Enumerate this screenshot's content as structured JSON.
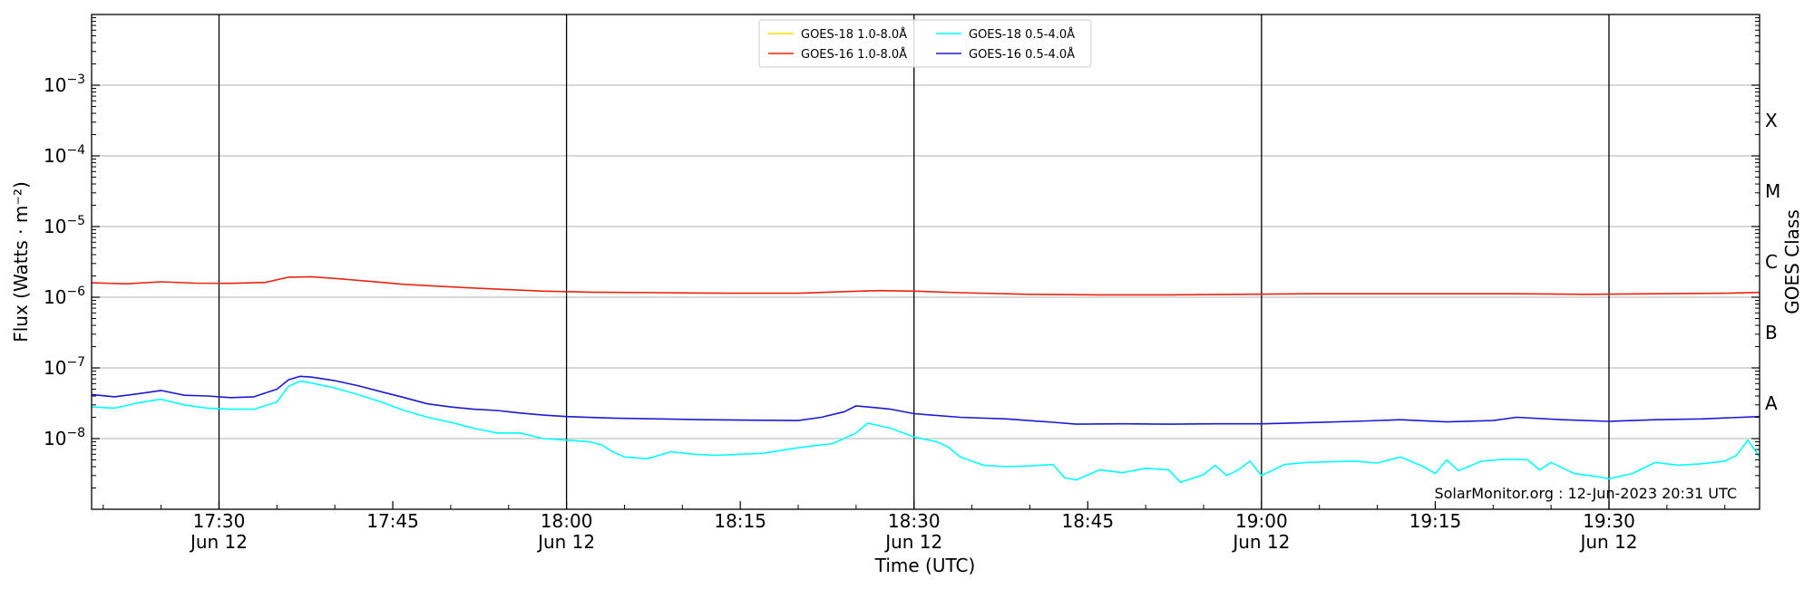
{
  "chart_data": {
    "type": "line",
    "title": "",
    "xlabel": "Time (UTC)",
    "ylabel": "Flux (Watts · m⁻²)",
    "right_label": "GOES Class",
    "yscale": "log",
    "xlim": [
      "17:19",
      "19:43"
    ],
    "ylim": [
      1e-09,
      0.01
    ],
    "grid": "horizontal at decades; vertical black lines at half-hours",
    "legend_position": "top-center",
    "x_ticks": [
      {
        "time": "17:30",
        "label": "17:30",
        "sub": "Jun 12"
      },
      {
        "time": "17:45",
        "label": "17:45",
        "sub": ""
      },
      {
        "time": "18:00",
        "label": "18:00",
        "sub": "Jun 12"
      },
      {
        "time": "18:15",
        "label": "18:15",
        "sub": ""
      },
      {
        "time": "18:30",
        "label": "18:30",
        "sub": "Jun 12"
      },
      {
        "time": "18:45",
        "label": "18:45",
        "sub": ""
      },
      {
        "time": "19:00",
        "label": "19:00",
        "sub": "Jun 12"
      },
      {
        "time": "19:15",
        "label": "19:15",
        "sub": ""
      },
      {
        "time": "19:30",
        "label": "19:30",
        "sub": "Jun 12"
      }
    ],
    "y_ticks": [
      {
        "value": 0.001,
        "base": "10",
        "exp": "−3"
      },
      {
        "value": 0.0001,
        "base": "10",
        "exp": "−4"
      },
      {
        "value": 1e-05,
        "base": "10",
        "exp": "−5"
      },
      {
        "value": 1e-06,
        "base": "10",
        "exp": "−6"
      },
      {
        "value": 1e-07,
        "base": "10",
        "exp": "−7"
      },
      {
        "value": 1e-08,
        "base": "10",
        "exp": "−8"
      }
    ],
    "class_labels": [
      {
        "label": "X",
        "value": 0.000316
      },
      {
        "label": "M",
        "value": 3.16e-05
      },
      {
        "label": "C",
        "value": 3.16e-06
      },
      {
        "label": "B",
        "value": 3.16e-07
      },
      {
        "label": "A",
        "value": 3.16e-08
      }
    ],
    "vlines": [
      "17:30",
      "18:00",
      "18:30",
      "19:00",
      "19:30"
    ],
    "series": [
      {
        "name": "GOES-18 1.0-8.0Å",
        "color": "#ffd700",
        "x": [],
        "values": []
      },
      {
        "name": "GOES-16 1.0-8.0Å",
        "color": "#e8230f",
        "x": [
          "17:19",
          "17:22",
          "17:25",
          "17:28",
          "17:31",
          "17:34",
          "17:36",
          "17:38",
          "17:40",
          "17:43",
          "17:46",
          "17:50",
          "17:54",
          "17:58",
          "18:02",
          "18:08",
          "18:14",
          "18:20",
          "18:24",
          "18:27",
          "18:30",
          "18:34",
          "18:40",
          "18:46",
          "18:52",
          "18:58",
          "19:04",
          "19:10",
          "19:16",
          "19:22",
          "19:28",
          "19:34",
          "19:40",
          "19:43"
        ],
        "values": [
          1.6e-06,
          1.55e-06,
          1.65e-06,
          1.58e-06,
          1.57e-06,
          1.62e-06,
          1.92e-06,
          1.95e-06,
          1.84e-06,
          1.68e-06,
          1.52e-06,
          1.4e-06,
          1.3e-06,
          1.22e-06,
          1.18e-06,
          1.16e-06,
          1.14e-06,
          1.14e-06,
          1.2e-06,
          1.24e-06,
          1.22e-06,
          1.16e-06,
          1.1e-06,
          1.08e-06,
          1.08e-06,
          1.1e-06,
          1.12e-06,
          1.12e-06,
          1.12e-06,
          1.12e-06,
          1.1e-06,
          1.12e-06,
          1.14e-06,
          1.17e-06
        ]
      },
      {
        "name": "GOES-18 0.5-4.0Å",
        "color": "#00ffff",
        "x": [
          "17:19",
          "17:21",
          "17:23",
          "17:25",
          "17:27",
          "17:29",
          "17:31",
          "17:33",
          "17:35",
          "17:36",
          "17:37",
          "17:38",
          "17:40",
          "17:42",
          "17:44",
          "17:46",
          "17:48",
          "17:50",
          "17:52",
          "17:54",
          "17:56",
          "17:58",
          "18:00",
          "18:02",
          "18:03",
          "18:04",
          "18:05",
          "18:07",
          "18:09",
          "18:11",
          "18:13",
          "18:15",
          "18:17",
          "18:19",
          "18:21",
          "18:23",
          "18:25",
          "18:26",
          "18:28",
          "18:30",
          "18:32",
          "18:33",
          "18:34",
          "18:36",
          "18:38",
          "18:40",
          "18:42",
          "18:43",
          "18:44",
          "18:46",
          "18:48",
          "18:50",
          "18:52",
          "18:53",
          "18:55",
          "18:56",
          "18:57",
          "18:58",
          "18:59",
          "19:00",
          "19:02",
          "19:04",
          "19:06",
          "19:08",
          "19:10",
          "19:12",
          "19:14",
          "19:15",
          "19:16",
          "19:17",
          "19:19",
          "19:21",
          "19:23",
          "19:24",
          "19:25",
          "19:27",
          "19:29",
          "19:30",
          "19:32",
          "19:34",
          "19:36",
          "19:38",
          "19:40",
          "19:41",
          "19:42",
          "19:43"
        ],
        "values": [
          2.8e-08,
          2.7e-08,
          3.2e-08,
          3.6e-08,
          3e-08,
          2.7e-08,
          2.6e-08,
          2.6e-08,
          3.3e-08,
          5.5e-08,
          6.5e-08,
          6.1e-08,
          5.2e-08,
          4.2e-08,
          3.3e-08,
          2.5e-08,
          2e-08,
          1.7e-08,
          1.4e-08,
          1.2e-08,
          1.2e-08,
          1e-08,
          9.5e-09,
          9e-09,
          8.2e-09,
          6.5e-09,
          5.5e-09,
          5.2e-09,
          6.5e-09,
          6e-09,
          5.8e-09,
          6e-09,
          6.2e-09,
          7e-09,
          7.8e-09,
          8.5e-09,
          1.2e-08,
          1.65e-08,
          1.4e-08,
          1.05e-08,
          9e-09,
          7.5e-09,
          5.5e-09,
          4.2e-09,
          4e-09,
          4.1e-09,
          4.3e-09,
          2.8e-09,
          2.6e-09,
          3.6e-09,
          3.3e-09,
          3.8e-09,
          3.6e-09,
          2.4e-09,
          3.1e-09,
          4.2e-09,
          3e-09,
          3.6e-09,
          4.8e-09,
          3e-09,
          4.3e-09,
          4.6e-09,
          4.7e-09,
          4.8e-09,
          4.5e-09,
          5.5e-09,
          4e-09,
          3.2e-09,
          5e-09,
          3.5e-09,
          4.8e-09,
          5.1e-09,
          5e-09,
          3.6e-09,
          4.6e-09,
          3.2e-09,
          2.9e-09,
          2.7e-09,
          3.2e-09,
          4.6e-09,
          4.2e-09,
          4.4e-09,
          4.8e-09,
          5.8e-09,
          9.5e-09,
          5.5e-09
        ]
      },
      {
        "name": "GOES-16 0.5-4.0Å",
        "color": "#1a1ad4",
        "x": [
          "17:19",
          "17:21",
          "17:23",
          "17:25",
          "17:27",
          "17:29",
          "17:31",
          "17:33",
          "17:35",
          "17:36",
          "17:37",
          "17:38",
          "17:40",
          "17:42",
          "17:44",
          "17:46",
          "17:48",
          "17:50",
          "17:52",
          "17:54",
          "17:56",
          "17:58",
          "18:00",
          "18:04",
          "18:08",
          "18:12",
          "18:16",
          "18:20",
          "18:22",
          "18:24",
          "18:25",
          "18:26",
          "18:28",
          "18:30",
          "18:34",
          "18:38",
          "18:42",
          "18:44",
          "18:48",
          "18:52",
          "18:56",
          "19:00",
          "19:04",
          "19:08",
          "19:12",
          "19:16",
          "19:20",
          "19:22",
          "19:26",
          "19:30",
          "19:34",
          "19:38",
          "19:43"
        ],
        "values": [
          4.2e-08,
          3.9e-08,
          4.3e-08,
          4.8e-08,
          4.1e-08,
          4e-08,
          3.8e-08,
          3.9e-08,
          5e-08,
          6.8e-08,
          7.6e-08,
          7.4e-08,
          6.6e-08,
          5.6e-08,
          4.6e-08,
          3.8e-08,
          3.1e-08,
          2.8e-08,
          2.6e-08,
          2.5e-08,
          2.3e-08,
          2.15e-08,
          2.05e-08,
          1.95e-08,
          1.9e-08,
          1.85e-08,
          1.82e-08,
          1.8e-08,
          2e-08,
          2.4e-08,
          2.9e-08,
          2.8e-08,
          2.6e-08,
          2.25e-08,
          2e-08,
          1.9e-08,
          1.7e-08,
          1.6e-08,
          1.62e-08,
          1.6e-08,
          1.62e-08,
          1.62e-08,
          1.68e-08,
          1.75e-08,
          1.85e-08,
          1.72e-08,
          1.8e-08,
          2e-08,
          1.85e-08,
          1.75e-08,
          1.85e-08,
          1.9e-08,
          2.05e-08
        ]
      }
    ]
  },
  "watermark": "SolarMonitor.org : 12-Jun-2023 20:31 UTC"
}
